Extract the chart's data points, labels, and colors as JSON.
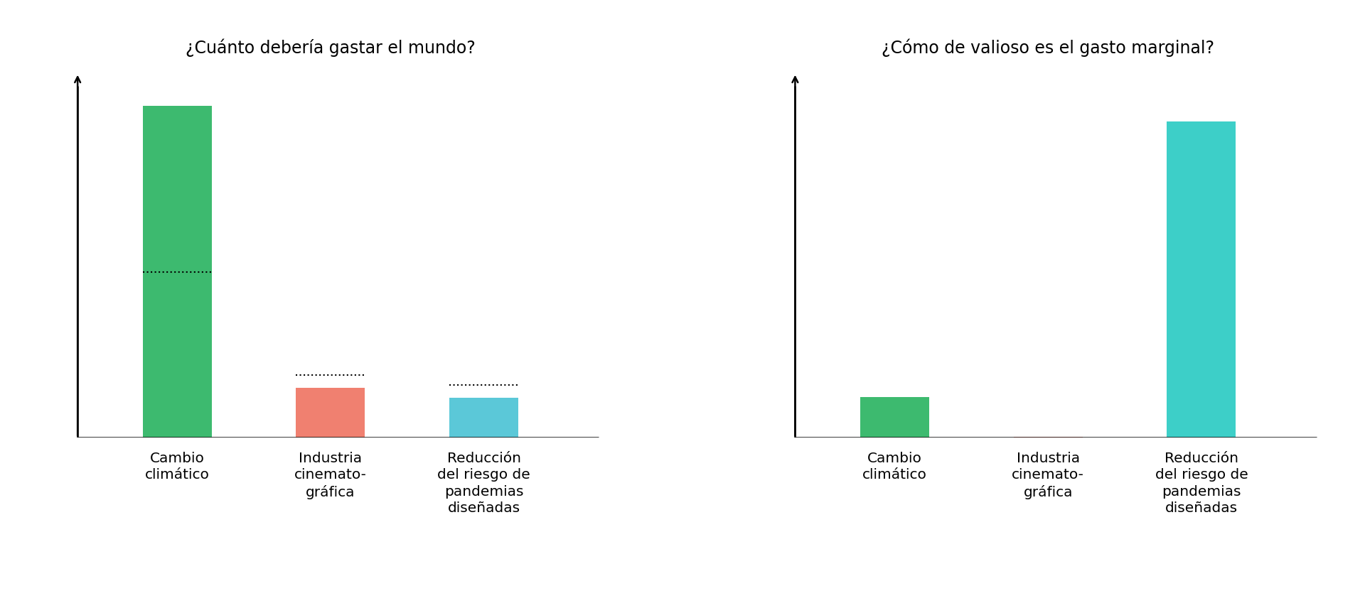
{
  "chart1": {
    "title": "¿Cuánto debería gastar el mundo?",
    "categories": [
      "Cambio\nclimático",
      "Industria\ncinemato-\ngráfica",
      "Reducción\ndel riesgo de\npandemias\ndiseñadas"
    ],
    "values": [
      100,
      15,
      12
    ],
    "colors": [
      "#3dba6f",
      "#f08070",
      "#5bc8d8"
    ],
    "dotted_lines": [
      50,
      19,
      16
    ],
    "ylim": [
      0,
      110
    ]
  },
  "chart2": {
    "title": "¿Cómo de valioso es el gasto marginal?",
    "categories": [
      "Cambio\nclimático",
      "Industria\ncinemato-\ngráfica",
      "Reducción\ndel riesgo de\npandemias\ndiseñadas"
    ],
    "values": [
      10,
      0.3,
      78
    ],
    "colors": [
      "#3dba6f",
      "#f08070",
      "#3dcfc8"
    ],
    "ylim": [
      0,
      90
    ]
  },
  "bg_color": "#ffffff",
  "title_fontsize": 17,
  "tick_fontsize": 14.5
}
